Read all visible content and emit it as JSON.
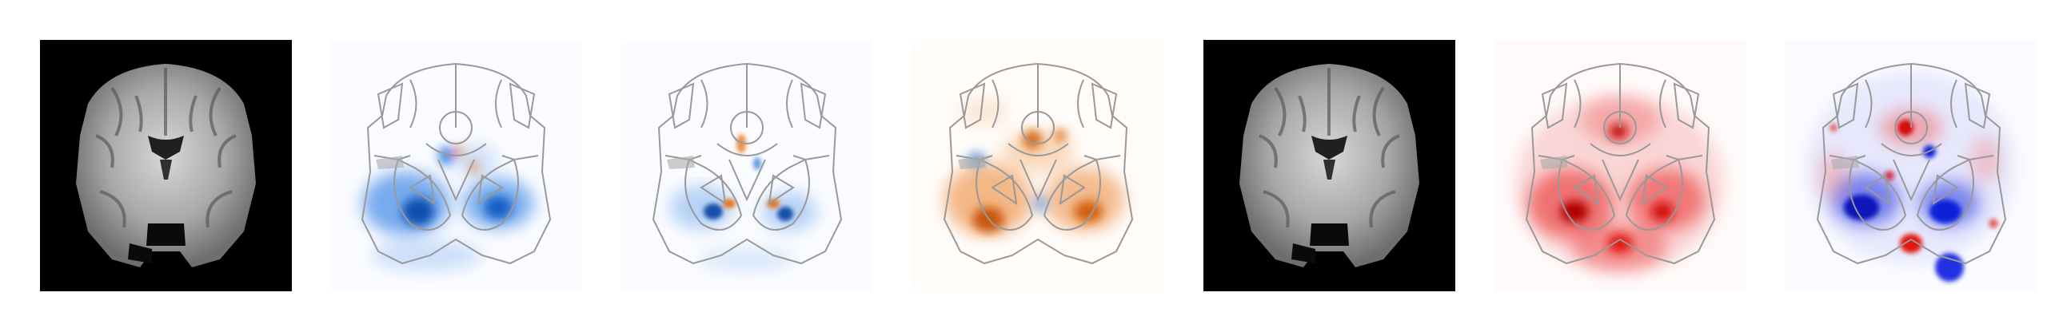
{
  "figure": {
    "panel_count": 7,
    "panels": [
      {
        "kind": "anatomy",
        "background": "#000000"
      },
      {
        "kind": "saliency-overlay",
        "colormap": "blue-white-orange",
        "dominant": "#1a6fdc"
      },
      {
        "kind": "saliency-overlay",
        "colormap": "blue-white-orange",
        "dominant": "#3a7fd8"
      },
      {
        "kind": "saliency-overlay",
        "colormap": "blue-white-orange",
        "dominant": "#e8731a"
      },
      {
        "kind": "anatomy",
        "background": "#000000"
      },
      {
        "kind": "saliency-overlay",
        "colormap": "white-red",
        "dominant": "#e3140f"
      },
      {
        "kind": "saliency-overlay",
        "colormap": "blue-white-red",
        "dominant": "#1020d8"
      }
    ],
    "outline_color": "#999999"
  }
}
